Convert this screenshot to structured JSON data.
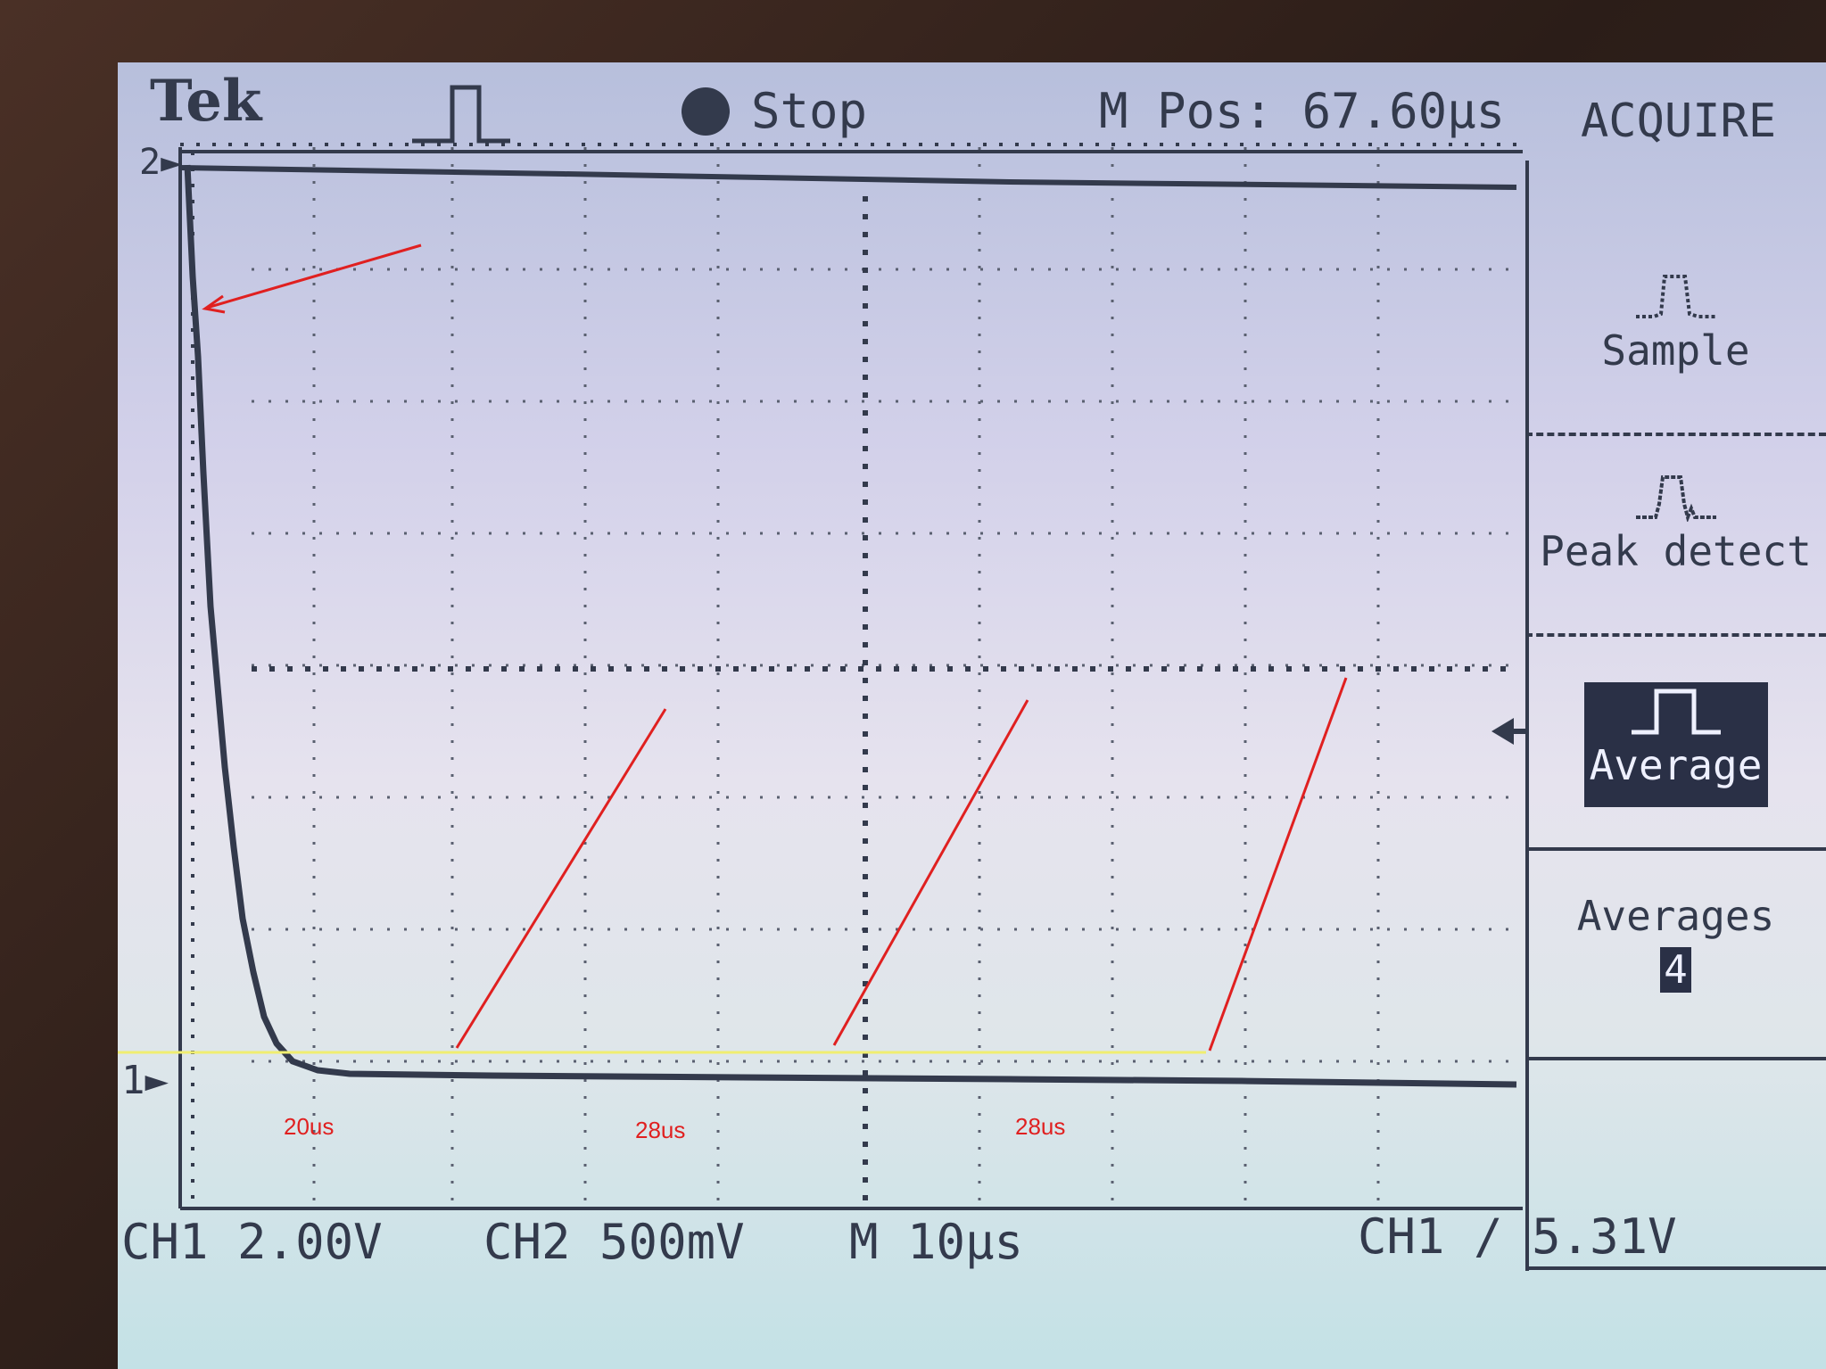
{
  "header": {
    "brand": "Tek",
    "status": "Stop",
    "m_pos": "M Pos: 67.60µs",
    "menu_title": "ACQUIRE"
  },
  "menu": {
    "sample": "Sample",
    "peak_detect": "Peak detect",
    "average": "Average",
    "averages_label": "Averages",
    "averages_value": "4"
  },
  "markers": {
    "ch2": "2",
    "ch1": "1"
  },
  "footer": {
    "ch1": "CH1 2.00V",
    "ch2": "CH2 500mV",
    "timebase": "M 10µs",
    "trigger": "CH1 ∕ 5.31V"
  },
  "annotations": {
    "a1": "20us",
    "a2": "28us",
    "a3": "28us"
  },
  "colors": {
    "trace": "#333a4c",
    "annotation": "#e02020",
    "baseline_line": "#f0ee70"
  }
}
